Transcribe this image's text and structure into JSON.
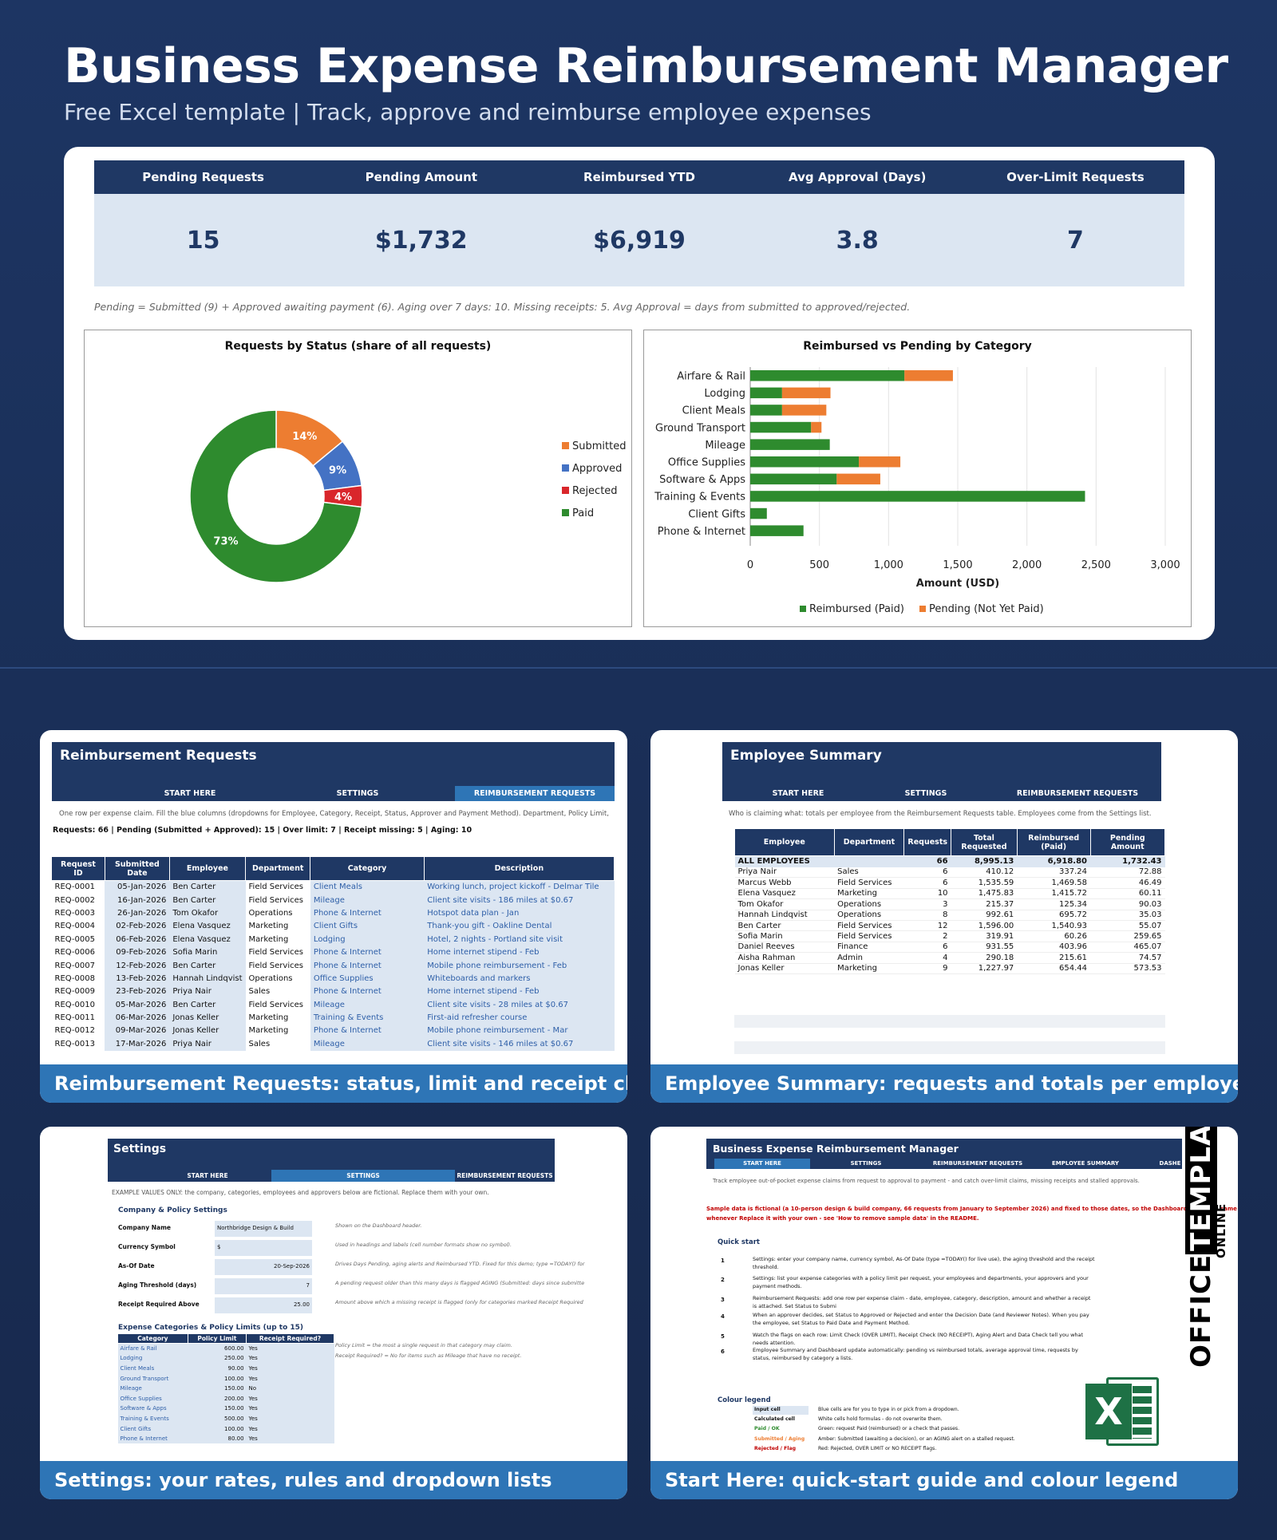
{
  "hero": {
    "title": "Business Expense Reimbursement Manager",
    "subtitle": "Free Excel template  |  Track, approve and reimburse employee expenses"
  },
  "kpis": [
    {
      "label": "Pending Requests",
      "value": "15"
    },
    {
      "label": "Pending Amount",
      "value": "$1,732"
    },
    {
      "label": "Reimbursed YTD",
      "value": "$6,919"
    },
    {
      "label": "Avg Approval (Days)",
      "value": "3.8"
    },
    {
      "label": "Over-Limit Requests",
      "value": "7"
    }
  ],
  "kpi_note": "Pending = Submitted (9) + Approved awaiting payment (6).  Aging over 7 days: 10.  Missing receipts: 5.  Avg Approval = days from submitted to approved/rejected.",
  "chart_data": [
    {
      "type": "pie",
      "title": "Requests by Status (share of all requests)",
      "categories": [
        "Submitted",
        "Approved",
        "Rejected",
        "Paid"
      ],
      "values": [
        14,
        9,
        4,
        73
      ],
      "labels": [
        "14%",
        "9%",
        "4%",
        "73%"
      ],
      "colors": [
        "#ed7d31",
        "#4472c4",
        "#d9262b",
        "#2e8b2e"
      ],
      "legend_position": "right"
    },
    {
      "type": "bar",
      "orientation": "horizontal",
      "stacked": true,
      "title": "Reimbursed vs Pending by Category",
      "categories": [
        "Airfare & Rail",
        "Lodging",
        "Client Meals",
        "Ground Transport",
        "Mileage",
        "Office Supplies",
        "Software & Apps",
        "Training & Events",
        "Client Gifts",
        "Phone & Internet"
      ],
      "series": [
        {
          "name": "Reimbursed (Paid)",
          "color": "#2e8b2e",
          "values": [
            1115,
            230,
            230,
            440,
            575,
            785,
            625,
            2420,
            120,
            385
          ]
        },
        {
          "name": "Pending (Not Yet Paid)",
          "color": "#ed7d31",
          "values": [
            350,
            350,
            320,
            75,
            0,
            300,
            315,
            0,
            0,
            0
          ]
        }
      ],
      "xlabel": "Amount (USD)",
      "xlim": [
        0,
        3000
      ],
      "xticks": [
        "0",
        "500",
        "1,000",
        "1,500",
        "2,000",
        "2,500",
        "3,000"
      ],
      "grid": true,
      "legend_position": "bottom"
    }
  ],
  "requests": {
    "title": "Reimbursement Requests",
    "tabs": [
      "START HERE",
      "SETTINGS",
      "REIMBURSEMENT REQUESTS"
    ],
    "note": "One row per expense claim. Fill the blue columns (dropdowns for Employee, Category, Receipt, Status, Approver and Payment Method). Department, Policy Limit,",
    "stats": "Requests: 66   |   Pending (Submitted + Approved): 15   |   Over limit: 7   |   Receipt missing: 5   |   Aging: 10",
    "headers": [
      "Request ID",
      "Submitted Date",
      "Employee",
      "Department",
      "Category",
      "Description"
    ],
    "rows": [
      [
        "REQ-0001",
        "05-Jan-2026",
        "Ben Carter",
        "Field Services",
        "Client Meals",
        "Working lunch, project kickoff - Delmar Tile"
      ],
      [
        "REQ-0002",
        "16-Jan-2026",
        "Ben Carter",
        "Field Services",
        "Mileage",
        "Client site visits - 186 miles at $0.67"
      ],
      [
        "REQ-0003",
        "26-Jan-2026",
        "Tom Okafor",
        "Operations",
        "Phone & Internet",
        "Hotspot data plan - Jan"
      ],
      [
        "REQ-0004",
        "02-Feb-2026",
        "Elena Vasquez",
        "Marketing",
        "Client Gifts",
        "Thank-you gift - Oakline Dental"
      ],
      [
        "REQ-0005",
        "06-Feb-2026",
        "Elena Vasquez",
        "Marketing",
        "Lodging",
        "Hotel, 2 nights - Portland site visit"
      ],
      [
        "REQ-0006",
        "09-Feb-2026",
        "Sofia Marin",
        "Field Services",
        "Phone & Internet",
        "Home internet stipend - Feb"
      ],
      [
        "REQ-0007",
        "12-Feb-2026",
        "Ben Carter",
        "Field Services",
        "Phone & Internet",
        "Mobile phone reimbursement - Feb"
      ],
      [
        "REQ-0008",
        "13-Feb-2026",
        "Hannah Lindqvist",
        "Operations",
        "Office Supplies",
        "Whiteboards and markers"
      ],
      [
        "REQ-0009",
        "23-Feb-2026",
        "Priya Nair",
        "Sales",
        "Phone & Internet",
        "Home internet stipend - Feb"
      ],
      [
        "REQ-0010",
        "05-Mar-2026",
        "Ben Carter",
        "Field Services",
        "Mileage",
        "Client site visits - 28 miles at $0.67"
      ],
      [
        "REQ-0011",
        "06-Mar-2026",
        "Jonas Keller",
        "Marketing",
        "Training & Events",
        "First-aid refresher course"
      ],
      [
        "REQ-0012",
        "09-Mar-2026",
        "Jonas Keller",
        "Marketing",
        "Phone & Internet",
        "Mobile phone reimbursement - Mar"
      ],
      [
        "REQ-0013",
        "17-Mar-2026",
        "Priya Nair",
        "Sales",
        "Mileage",
        "Client site visits - 146 miles at $0.67"
      ]
    ],
    "caption": "Reimbursement Requests: status, limit and receipt checks"
  },
  "employees": {
    "title": "Employee Summary",
    "tabs": [
      "START HERE",
      "SETTINGS",
      "REIMBURSEMENT REQUESTS"
    ],
    "note": "Who is claiming what: totals per employee from the Reimbursement Requests table. Employees come from the Settings list.",
    "headers": [
      "Employee",
      "Department",
      "Requests",
      "Total Requested",
      "Reimbursed (Paid)",
      "Pending Amount"
    ],
    "total": [
      "ALL EMPLOYEES",
      "",
      "66",
      "8,995.13",
      "6,918.80",
      "1,732.43"
    ],
    "rows": [
      [
        "Priya Nair",
        "Sales",
        "6",
        "410.12",
        "337.24",
        "72.88"
      ],
      [
        "Marcus Webb",
        "Field Services",
        "6",
        "1,535.59",
        "1,469.58",
        "46.49"
      ],
      [
        "Elena Vasquez",
        "Marketing",
        "10",
        "1,475.83",
        "1,415.72",
        "60.11"
      ],
      [
        "Tom Okafor",
        "Operations",
        "3",
        "215.37",
        "125.34",
        "90.03"
      ],
      [
        "Hannah Lindqvist",
        "Operations",
        "8",
        "992.61",
        "695.72",
        "35.03"
      ],
      [
        "Ben Carter",
        "Field Services",
        "12",
        "1,596.00",
        "1,540.93",
        "55.07"
      ],
      [
        "Sofia Marin",
        "Field Services",
        "2",
        "319.91",
        "60.26",
        "259.65"
      ],
      [
        "Daniel Reeves",
        "Finance",
        "6",
        "931.55",
        "403.96",
        "465.07"
      ],
      [
        "Aisha Rahman",
        "Admin",
        "4",
        "290.18",
        "215.61",
        "74.57"
      ],
      [
        "Jonas Keller",
        "Marketing",
        "9",
        "1,227.97",
        "654.44",
        "573.53"
      ]
    ],
    "caption": "Employee Summary: requests and totals per employee"
  },
  "settings": {
    "title": "Settings",
    "tabs": [
      "START HERE",
      "SETTINGS",
      "REIMBURSEMENT REQUESTS"
    ],
    "note": "EXAMPLE VALUES ONLY: the company, categories, employees and approvers below are fictional. Replace them with your own.",
    "section1": "Company & Policy Settings",
    "fields": [
      {
        "label": "Company Name",
        "value": "Northbridge Design & Build",
        "hint": "Shown on the Dashboard header."
      },
      {
        "label": "Currency Symbol",
        "value": "$",
        "hint": "Used in headings and labels (cell number formats show no symbol)."
      },
      {
        "label": "As-Of Date",
        "value": "20-Sep-2026",
        "hint": "Drives Days Pending, aging alerts and Reimbursed YTD. Fixed for this demo; type =TODAY() for"
      },
      {
        "label": "Aging Threshold (days)",
        "value": "7",
        "hint": "A pending request older than this many days is flagged AGING (Submitted: days since submitte"
      },
      {
        "label": "Receipt Required Above",
        "value": "25.00",
        "hint": "Amount above which a missing receipt is flagged (only for categories marked Receipt Required"
      }
    ],
    "section2": "Expense Categories & Policy Limits (up to 15)",
    "cat_headers": [
      "Category",
      "Policy Limit",
      "Receipt Required?"
    ],
    "cats": [
      [
        "Airfare & Rail",
        "600.00",
        "Yes"
      ],
      [
        "Lodging",
        "250.00",
        "Yes"
      ],
      [
        "Client Meals",
        "90.00",
        "Yes"
      ],
      [
        "Ground Transport",
        "100.00",
        "Yes"
      ],
      [
        "Mileage",
        "150.00",
        "No"
      ],
      [
        "Office Supplies",
        "200.00",
        "Yes"
      ],
      [
        "Software & Apps",
        "150.00",
        "Yes"
      ],
      [
        "Training & Events",
        "500.00",
        "Yes"
      ],
      [
        "Client Gifts",
        "100.00",
        "Yes"
      ],
      [
        "Phone & Internet",
        "80.00",
        "Yes"
      ]
    ],
    "cat_hints": [
      "Policy Limit = the most a single request in that category may claim.",
      "Receipt Required? = No for items such as Mileage that have no receipt."
    ],
    "caption": "Settings: your rates, rules and dropdown lists"
  },
  "start": {
    "title": "Business Expense Reimbursement Manager",
    "tabs": [
      "START HERE",
      "SETTINGS",
      "REIMBURSEMENT REQUESTS",
      "EMPLOYEE SUMMARY",
      "DASHE"
    ],
    "note": "Track employee out-of-pocket expense claims from request to approval to payment - and catch over-limit claims, missing receipts and stalled approvals.",
    "warning": "Sample data is fictional (a 10-person design & build company, 66 requests from January to September 2026) and fixed to those dates, so the Dashboard looks the same whenever Replace it with your own - see 'How to remove sample data' in the README.",
    "quick": "Quick start",
    "steps": [
      {
        "n": "1",
        "t": "Settings: enter your company name, currency symbol, As-Of Date (type =TODAY() for live use), the aging threshold and the receipt threshold."
      },
      {
        "n": "2",
        "t": "Settings: list your expense categories with a policy limit per request, your employees and departments, your approvers and your payment methods."
      },
      {
        "n": "3",
        "t": "Reimbursement Requests: add one row per expense claim - date, employee, category, description, amount and whether a receipt is attached. Set Status to Submi"
      },
      {
        "n": "4",
        "t": "When an approver decides, set Status to Approved or Rejected and enter the Decision Date (and Reviewer Notes). When you pay the employee, set Status to Paid Date and Payment Method."
      },
      {
        "n": "5",
        "t": "Watch the flags on each row: Limit Check (OVER LIMIT), Receipt Check (NO RECEIPT), Aging Alert and Data Check tell you what needs attention."
      },
      {
        "n": "6",
        "t": "Employee Summary and Dashboard update automatically: pending vs reimbursed totals, average approval time, requests by status, reimbursed by category a lists."
      }
    ],
    "legend_title": "Colour legend",
    "legend": [
      {
        "k": "Input cell",
        "d": "Blue cells are for you to type in or pick from a dropdown."
      },
      {
        "k": "Calculated cell",
        "d": "White cells hold formulas - do not overwrite them."
      },
      {
        "k": "Paid / OK",
        "d": "Green: request Paid (reimbursed) or a check that passes."
      },
      {
        "k": "Submitted / Aging",
        "d": "Amber: Submitted (awaiting a decision), or an AGING alert on a stalled request."
      },
      {
        "k": "Rejected / Flag",
        "d": "Red: Rejected, OVER LIMIT or NO RECEIPT flags."
      }
    ],
    "brand": {
      "word1": "OFFICE",
      "word2": "TEMPLATES",
      "word3": "ONLINE",
      "excel": "X"
    },
    "caption": "Start Here: quick-start guide and colour legend"
  }
}
